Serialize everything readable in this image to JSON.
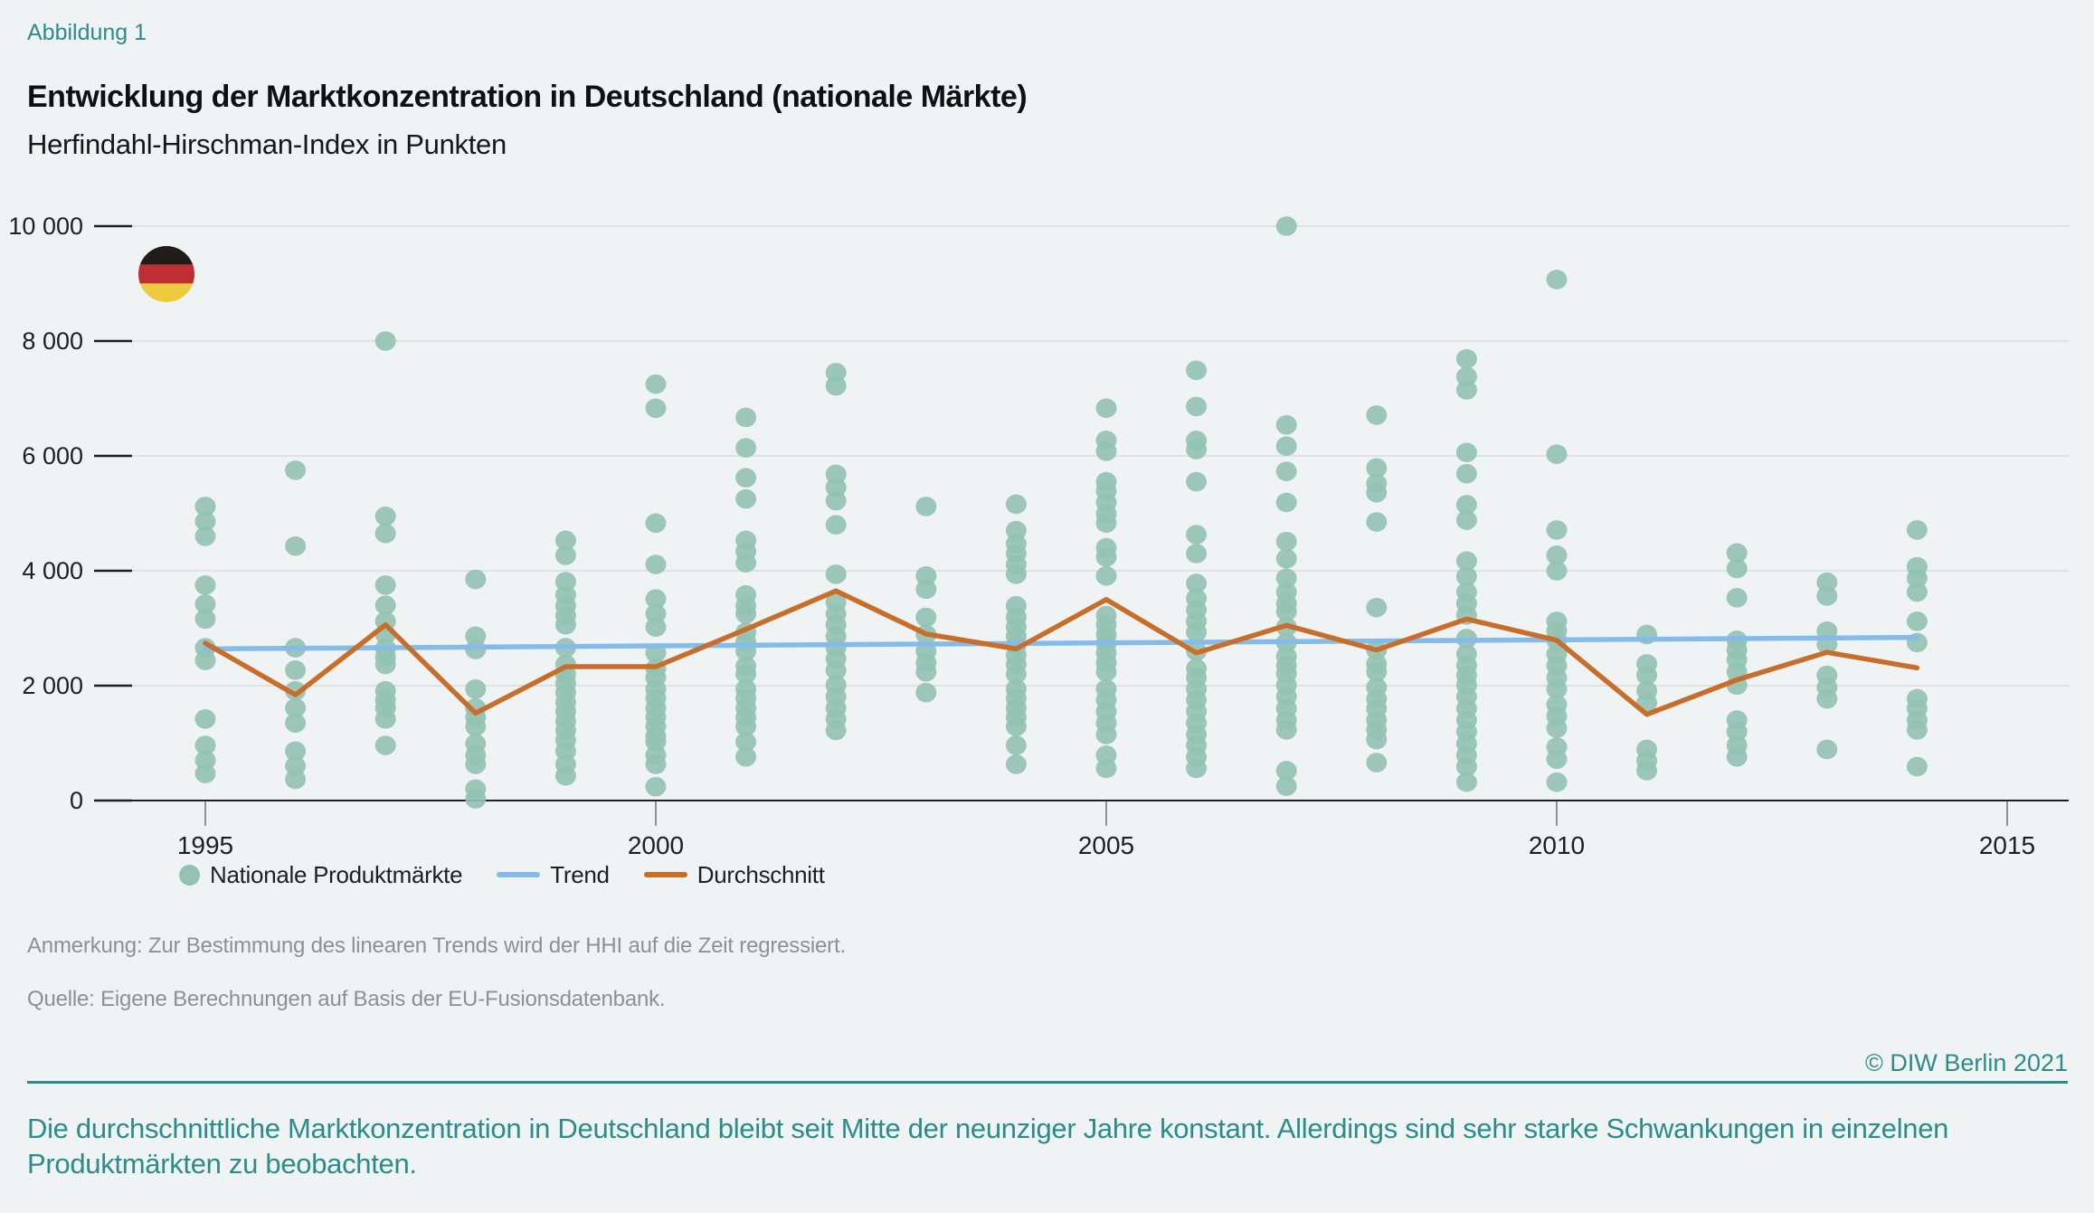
{
  "header": {
    "figure_label": "Abbildung 1",
    "title": "Entwicklung der Marktkonzentration in Deutschland (nationale Märkte)",
    "subtitle": "Herfindahl-Hirschman-Index in Punkten"
  },
  "legend": {
    "items": [
      {
        "label": "Nationale Produktmärkte",
        "marker": "dot",
        "color": "#92c2b1"
      },
      {
        "label": "Trend",
        "marker": "line",
        "color": "#84bbe9"
      },
      {
        "label": "Durchschnitt",
        "marker": "line",
        "color": "#c96d2a"
      }
    ]
  },
  "notes": {
    "remark": "Anmerkung: Zur Bestimmung des linearen Trends wird der HHI auf die Zeit regressiert.",
    "source": "Quelle: Eigene Berechnungen auf Basis der EU-Fusionsdatenbank."
  },
  "footer": {
    "copyright": "© DIW Berlin 2021",
    "summary": "Die durchschnittliche Marktkonzentration in Deutschland bleibt seit Mitte der neunziger Jahre konstant. Allerdings sind sehr starke Schwankungen in einzelnen Produktmärkten zu beobachten."
  },
  "chart_data": {
    "type": "scatter",
    "title": "Entwicklung der Marktkonzentration in Deutschland (nationale Märkte)",
    "subtitle": "Herfindahl-Hirschman-Index in Punkten",
    "xlabel": "",
    "ylabel": "Herfindahl-Hirschman-Index in Punkten",
    "ylim": [
      0,
      10000
    ],
    "xlim": [
      1994,
      2015.7
    ],
    "grid": true,
    "legend_position": "bottom",
    "x_ticks": [
      1995,
      2000,
      2005,
      2010,
      2015
    ],
    "x_tick_labels": [
      "1995",
      "2000",
      "2005",
      "2010",
      "2015"
    ],
    "y_ticks": [
      0,
      2000,
      4000,
      6000,
      8000,
      10000
    ],
    "y_tick_labels": [
      "0",
      "2 000",
      "4 000",
      "6 000",
      "8 000",
      "10 000"
    ],
    "colors": {
      "background": "#eff3f4",
      "grid": "#d8dddd",
      "axis": "#1f1f1f",
      "x_tick": "#8f9496",
      "accent_teal": "#2b8c8a",
      "scatter": "#92c2b1",
      "trend": "#84bbe9",
      "average": "#c96d2a",
      "flag_black": "#211c19",
      "flag_red": "#c02d33",
      "flag_gold": "#eeca3c"
    },
    "flag_icon": "germany-flag",
    "series": [
      {
        "name": "Nationale Produktmärkte",
        "kind": "scatter",
        "points_by_year": {
          "1995": [
            5120,
            4860,
            4600,
            3750,
            3420,
            3160,
            2660,
            2440,
            1420,
            960,
            700,
            470
          ],
          "1996": [
            5750,
            4430,
            2660,
            2270,
            1910,
            1610,
            1350,
            860,
            600,
            370
          ],
          "1997": [
            8000,
            4950,
            4650,
            3750,
            3400,
            3120,
            2890,
            2650,
            2500,
            2370,
            1910,
            1750,
            1610,
            1420,
            960
          ],
          "1998": [
            3850,
            2860,
            2630,
            1940,
            1610,
            1450,
            1290,
            990,
            790,
            630,
            200,
            30
          ],
          "1999": [
            4530,
            4270,
            3810,
            3580,
            3390,
            3220,
            3060,
            2660,
            2370,
            2200,
            2040,
            1880,
            1710,
            1550,
            1380,
            1220,
            1050,
            860,
            630,
            430
          ],
          "2000": [
            7250,
            6830,
            4830,
            4110,
            3510,
            3250,
            3020,
            2570,
            2300,
            2140,
            1940,
            1780,
            1610,
            1450,
            1290,
            1120,
            1020,
            790,
            630,
            240
          ],
          "2001": [
            6670,
            6140,
            5620,
            5250,
            4530,
            4340,
            4140,
            3580,
            3390,
            3250,
            2930,
            2760,
            2600,
            2340,
            2200,
            1940,
            1780,
            1610,
            1450,
            1290,
            1020,
            760
          ],
          "2002": [
            7450,
            7220,
            5680,
            5450,
            5220,
            4800,
            3940,
            3450,
            3250,
            3060,
            2860,
            2660,
            2470,
            2270,
            2010,
            1810,
            1610,
            1420,
            1220
          ],
          "2003": [
            5120,
            3910,
            3680,
            3190,
            2890,
            2600,
            2400,
            2240,
            1880
          ],
          "2004": [
            5160,
            4700,
            4470,
            4300,
            4110,
            3940,
            3390,
            3190,
            3020,
            2860,
            2700,
            2530,
            2370,
            2200,
            1940,
            1780,
            1610,
            1450,
            1290,
            960,
            630
          ],
          "2005": [
            6830,
            6270,
            6080,
            5550,
            5390,
            5190,
            4990,
            4830,
            4400,
            4240,
            3910,
            3220,
            3060,
            2890,
            2730,
            2570,
            2400,
            2240,
            1940,
            1750,
            1550,
            1350,
            1150,
            790,
            560
          ],
          "2006": [
            7490,
            6860,
            6270,
            6110,
            5550,
            4630,
            4300,
            3780,
            3520,
            3320,
            3120,
            2930,
            2600,
            2300,
            2140,
            1940,
            1750,
            1550,
            1350,
            1150,
            960,
            760,
            560
          ],
          "2007": [
            10000,
            6540,
            6170,
            5730,
            5190,
            4510,
            4210,
            3870,
            3630,
            3430,
            3290,
            3020,
            2750,
            2510,
            2350,
            2210,
            2010,
            1810,
            1600,
            1400,
            1230,
            520,
            250
          ],
          "2008": [
            6710,
            5790,
            5520,
            5360,
            4850,
            3360,
            2620,
            2380,
            2240,
            1970,
            1770,
            1600,
            1400,
            1230,
            1060,
            660
          ],
          "2009": [
            7690,
            7380,
            7150,
            6060,
            5690,
            5150,
            4880,
            4170,
            3900,
            3630,
            3430,
            3230,
            2820,
            2550,
            2350,
            2180,
            2010,
            1810,
            1600,
            1400,
            1200,
            990,
            790,
            590,
            320
          ],
          "2010": [
            9070,
            6030,
            4710,
            4270,
            4000,
            3120,
            2950,
            2790,
            2550,
            2350,
            2140,
            1940,
            1670,
            1470,
            1260,
            930,
            720,
            320
          ],
          "2011": [
            2890,
            2380,
            2180,
            1910,
            1700,
            890,
            690,
            520
          ],
          "2012": [
            4310,
            4040,
            3530,
            2790,
            2620,
            2450,
            2240,
            2010,
            1400,
            1200,
            960,
            760
          ],
          "2013": [
            3800,
            3560,
            2950,
            2720,
            2180,
            1970,
            1770,
            890
          ],
          "2014": [
            4710,
            4070,
            3870,
            3630,
            3120,
            2750,
            1770,
            1600,
            1400,
            1230,
            590
          ]
        }
      },
      {
        "name": "Trend",
        "kind": "line",
        "x": [
          1995,
          2014
        ],
        "values": [
          2640,
          2840
        ]
      },
      {
        "name": "Durchschnitt",
        "kind": "line",
        "x": [
          1995,
          1996,
          1997,
          1998,
          1999,
          2000,
          2001,
          2002,
          2003,
          2004,
          2005,
          2006,
          2007,
          2008,
          2009,
          2010,
          2011,
          2012,
          2013,
          2014
        ],
        "values": [
          2740,
          1840,
          3060,
          1520,
          2330,
          2330,
          2980,
          3650,
          2900,
          2640,
          3500,
          2570,
          3050,
          2620,
          3160,
          2790,
          1500,
          2100,
          2580,
          2310
        ]
      }
    ]
  }
}
